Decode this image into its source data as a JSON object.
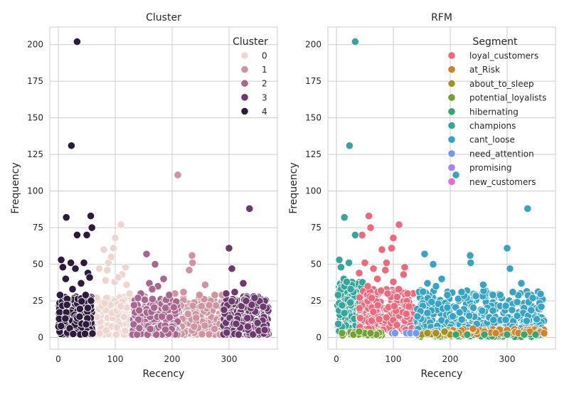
{
  "figure": {
    "background": "#ffffff",
    "grid_color": "#cccccc",
    "axes_edge_color": "#cccccc"
  },
  "chart_data": [
    {
      "type": "scatter",
      "title": "Cluster",
      "xlabel": "Recency",
      "ylabel": "Frequency",
      "xlim": [
        -15,
        385
      ],
      "ylim": [
        -8,
        212
      ],
      "xticks": [
        0,
        100,
        200,
        300
      ],
      "yticks": [
        0,
        25,
        50,
        75,
        100,
        125,
        150,
        175,
        200
      ],
      "grid": true,
      "legend": {
        "title": "Cluster",
        "placement": "top-right"
      },
      "series": [
        {
          "name": "0",
          "color": "#efd5cf",
          "recency_range": [
            60,
            135
          ],
          "points": [
            [
              100,
              68
            ],
            [
              110,
              77
            ],
            [
              80,
              60
            ],
            [
              88,
              51
            ],
            [
              86,
              46
            ],
            [
              118,
              48
            ],
            [
              112,
              43
            ],
            [
              99,
              38
            ],
            [
              125,
              30
            ],
            [
              97,
              61
            ],
            [
              72,
              47
            ],
            [
              93,
              55
            ],
            [
              83,
              39
            ],
            [
              105,
              41
            ],
            [
              120,
              36
            ]
          ]
        },
        {
          "name": "1",
          "color": "#d0939f",
          "recency_range": [
            200,
            295
          ],
          "points": [
            [
              210,
              111
            ],
            [
              235,
              56
            ],
            [
              230,
              46
            ],
            [
              236,
              51
            ],
            [
              258,
              36
            ],
            [
              288,
              29
            ],
            [
              220,
              31
            ],
            [
              275,
              29
            ],
            [
              248,
              29
            ],
            [
              205,
              30
            ],
            [
              265,
              22
            ]
          ]
        },
        {
          "name": "2",
          "color": "#a9678e",
          "recency_range": [
            130,
            210
          ],
          "points": [
            [
              155,
              57
            ],
            [
              170,
              50
            ],
            [
              185,
              40
            ],
            [
              160,
              37
            ],
            [
              175,
              35
            ],
            [
              145,
              30
            ],
            [
              195,
              29
            ],
            [
              165,
              33
            ],
            [
              140,
              27
            ]
          ]
        },
        {
          "name": "3",
          "color": "#6c3a6d",
          "recency_range": [
            290,
            370
          ],
          "points": [
            [
              336,
              88
            ],
            [
              300,
              61
            ],
            [
              305,
              47
            ],
            [
              325,
              37
            ],
            [
              310,
              31
            ],
            [
              360,
              21
            ],
            [
              345,
              27
            ],
            [
              330,
              25
            ],
            [
              295,
              30
            ]
          ]
        },
        {
          "name": "4",
          "color": "#2e1b3b",
          "recency_range": [
            0,
            60
          ],
          "points": [
            [
              33,
              202
            ],
            [
              23,
              131
            ],
            [
              14,
              82
            ],
            [
              57,
              83
            ],
            [
              59,
              75
            ],
            [
              33,
              70
            ],
            [
              50,
              70
            ],
            [
              5,
              53
            ],
            [
              8,
              48
            ],
            [
              13,
              40
            ],
            [
              22,
              51
            ],
            [
              30,
              47
            ],
            [
              45,
              51
            ],
            [
              52,
              44
            ],
            [
              40,
              37
            ],
            [
              55,
              41
            ],
            [
              3,
              29
            ],
            [
              25,
              33
            ],
            [
              48,
              29
            ]
          ]
        }
      ]
    },
    {
      "type": "scatter",
      "title": "RFM",
      "xlabel": "Recency",
      "ylabel": "Frequency",
      "xlim": [
        -15,
        385
      ],
      "ylim": [
        -8,
        212
      ],
      "xticks": [
        0,
        100,
        200,
        300
      ],
      "yticks": [
        0,
        25,
        50,
        75,
        100,
        125,
        150,
        175,
        200
      ],
      "grid": true,
      "legend": {
        "title": "Segment",
        "placement": "top-right"
      },
      "series": [
        {
          "name": "loyal_customers",
          "color": "#f0687a",
          "points": [
            [
              57,
              83
            ],
            [
              60,
              75
            ],
            [
              45,
              70
            ],
            [
              100,
              68
            ],
            [
              110,
              77
            ],
            [
              97,
              61
            ],
            [
              80,
              60
            ],
            [
              120,
              48
            ],
            [
              88,
              51
            ],
            [
              86,
              46
            ],
            [
              118,
              43
            ],
            [
              65,
              47
            ],
            [
              50,
              51
            ],
            [
              72,
              40
            ],
            [
              100,
              38
            ],
            [
              40,
              44
            ],
            [
              55,
              35
            ],
            [
              90,
              30
            ],
            [
              125,
              30
            ],
            [
              62,
              27
            ]
          ]
        },
        {
          "name": "at_Risk",
          "color": "#d1832c",
          "points": [
            [
              215,
              3
            ],
            [
              260,
              4
            ],
            [
              300,
              5
            ],
            [
              340,
              4
            ],
            [
              365,
              3
            ],
            [
              240,
              6
            ],
            [
              320,
              3
            ],
            [
              280,
              3
            ]
          ]
        },
        {
          "name": "about_to_sleep",
          "color": "#a5921e",
          "points": [
            [
              150,
              2
            ],
            [
              175,
              3
            ],
            [
              200,
              2
            ],
            [
              190,
              4
            ],
            [
              160,
              3
            ]
          ]
        },
        {
          "name": "potential_loyalists",
          "color": "#72a22f",
          "points": [
            [
              10,
              3
            ],
            [
              30,
              2
            ],
            [
              50,
              3
            ],
            [
              70,
              2
            ],
            [
              40,
              4
            ],
            [
              60,
              3
            ]
          ]
        },
        {
          "name": "hibernating",
          "color": "#33a86f",
          "points": [
            [
              230,
              2
            ],
            [
              300,
              2
            ],
            [
              350,
              2
            ],
            [
              260,
              2
            ],
            [
              210,
              2
            ],
            [
              330,
              2
            ]
          ]
        },
        {
          "name": "champions",
          "color": "#33a79b",
          "points": [
            [
              33,
              202
            ],
            [
              23,
              131
            ],
            [
              14,
              82
            ],
            [
              33,
              70
            ],
            [
              5,
              53
            ],
            [
              22,
              51
            ],
            [
              8,
              48
            ],
            [
              13,
              40
            ],
            [
              3,
              29
            ],
            [
              25,
              33
            ],
            [
              18,
              38
            ],
            [
              10,
              22
            ]
          ]
        },
        {
          "name": "cant_loose",
          "color": "#37a4c5",
          "points": [
            [
              210,
              111
            ],
            [
              336,
              88
            ],
            [
              300,
              61
            ],
            [
              155,
              57
            ],
            [
              235,
              56
            ],
            [
              170,
              50
            ],
            [
              236,
              51
            ],
            [
              305,
              47
            ],
            [
              185,
              40
            ],
            [
              160,
              37
            ],
            [
              325,
              37
            ],
            [
              258,
              36
            ],
            [
              220,
              31
            ],
            [
              310,
              31
            ],
            [
              288,
              29
            ],
            [
              195,
              29
            ],
            [
              345,
              27
            ],
            [
              360,
              21
            ],
            [
              175,
              35
            ],
            [
              275,
              29
            ]
          ]
        },
        {
          "name": "need_attention",
          "color": "#7399f0",
          "points": [
            [
              98,
              3
            ],
            [
              103,
              3
            ],
            [
              123,
              3
            ],
            [
              130,
              3
            ],
            [
              140,
              3
            ]
          ]
        },
        {
          "name": "promising",
          "color": "#b57df2",
          "points": []
        },
        {
          "name": "new_customers",
          "color": "#f265d6",
          "points": []
        }
      ]
    }
  ]
}
